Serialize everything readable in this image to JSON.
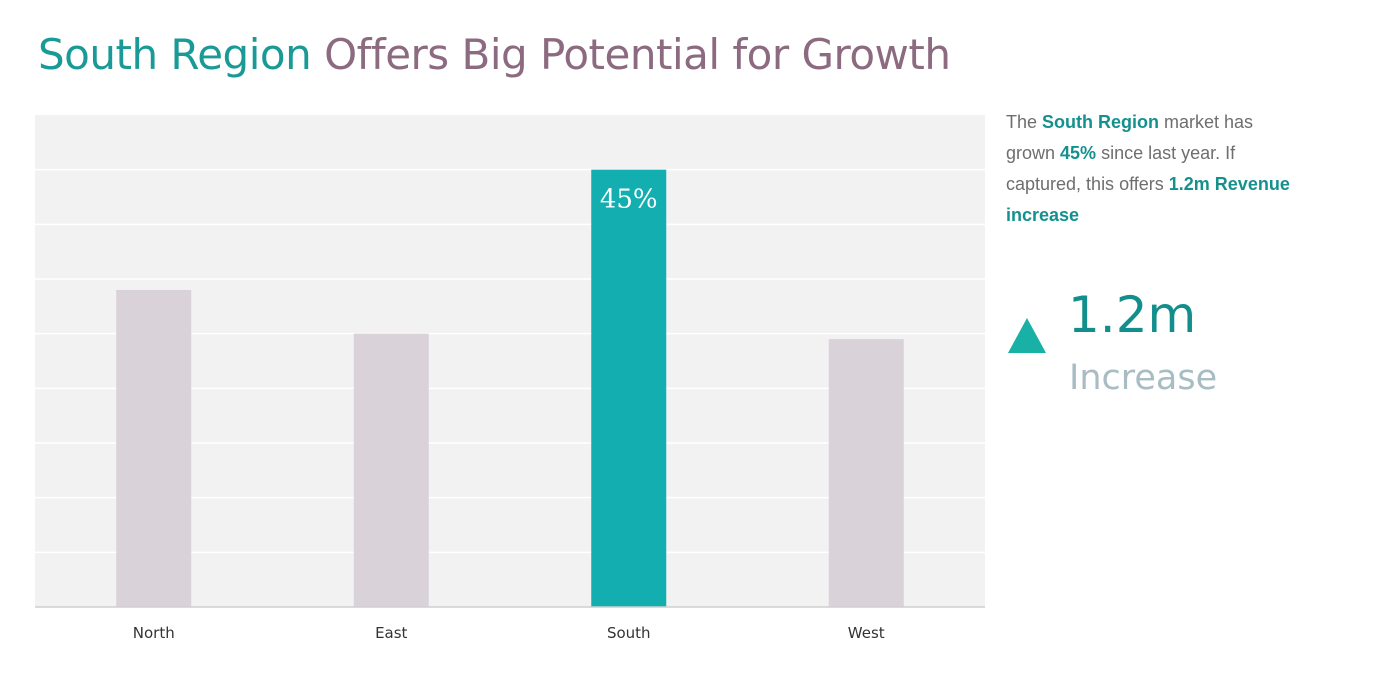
{
  "header": {
    "title_highlight": "South Region",
    "title_rest": "Offers Big Potential for Growth"
  },
  "colors": {
    "accent": "#12aeb0",
    "muted_bar": "#dad2d9",
    "plot_background": "#f2f2f2",
    "title_highlight": "#1a9a96",
    "title_rest": "#8c6a80",
    "kpi_arrow": "#19b0a6",
    "kpi_value": "#128f8d",
    "kpi_caption": "#a8bcc4"
  },
  "summary": {
    "text_1": "The ",
    "region": "South Region",
    "text_2": " market has grown ",
    "growth": "45%",
    "text_3": " since last year. If captured, this offers ",
    "revenue": "1.2m Revenue increase"
  },
  "kpi": {
    "icon": "up-triangle-icon",
    "value": "1.2m",
    "caption": "Increase"
  },
  "chart_data": {
    "type": "bar",
    "categories": [
      "North",
      "East",
      "South",
      "West"
    ],
    "values": [
      58,
      50,
      80,
      49
    ],
    "highlight_index": 2,
    "data_labels": [
      "",
      "",
      "45%",
      ""
    ],
    "ylim": [
      0,
      90
    ],
    "grid": true,
    "title": "",
    "xlabel": "",
    "ylabel": ""
  }
}
